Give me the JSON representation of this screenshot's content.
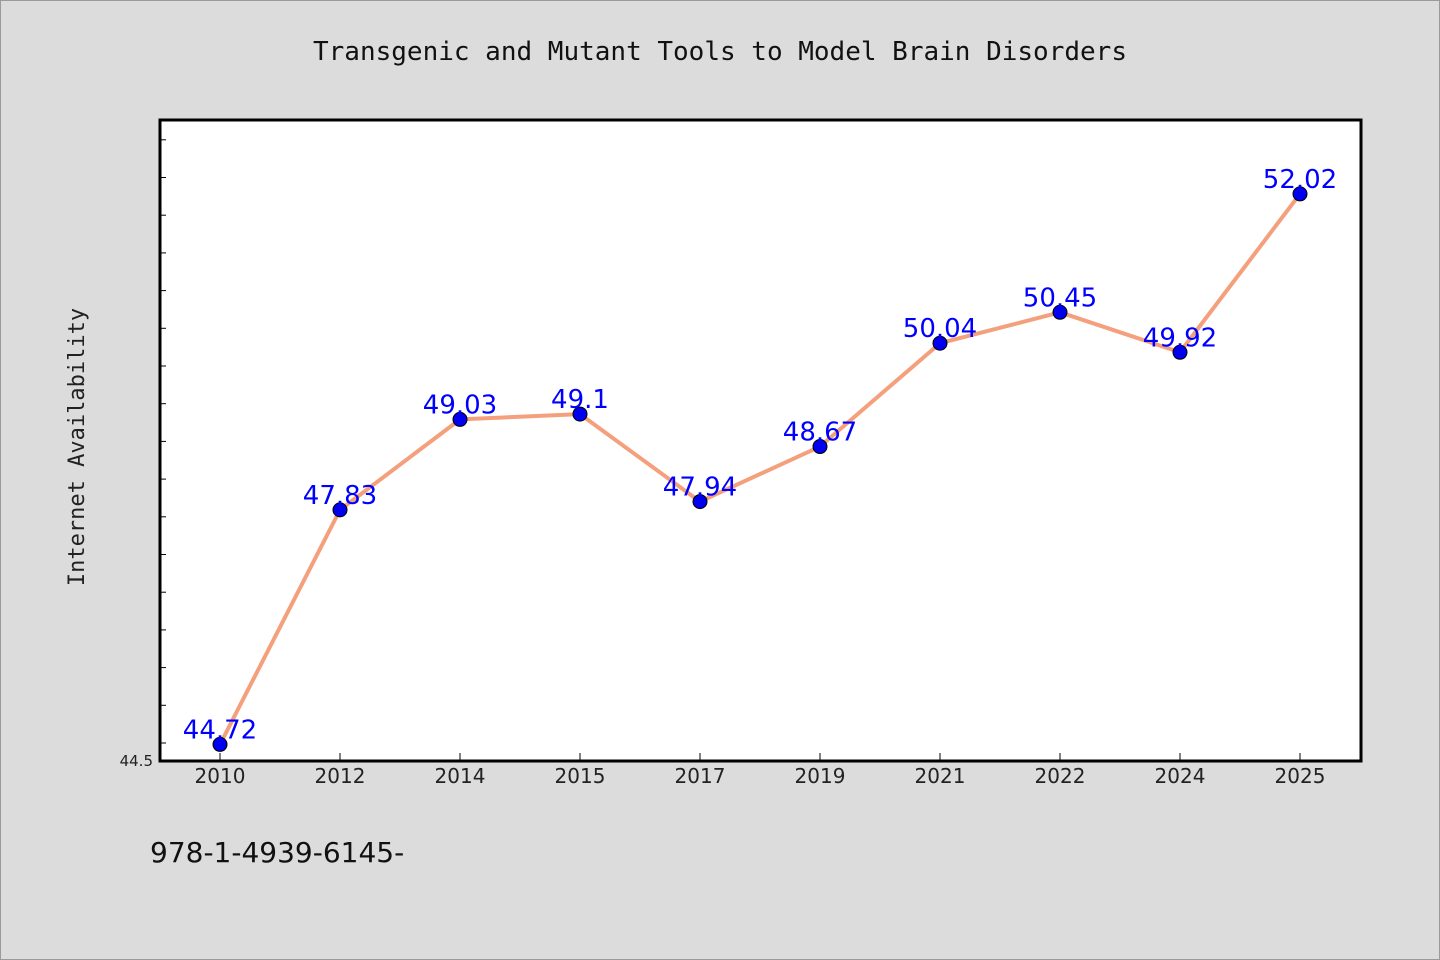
{
  "chart_data": {
    "type": "line",
    "title": "Transgenic and Mutant Tools to Model Brain Disorders",
    "xlabel": "",
    "ylabel": "Internet Availability",
    "categories": [
      "2010",
      "2012",
      "2014",
      "2015",
      "2017",
      "2019",
      "2021",
      "2022",
      "2024",
      "2025"
    ],
    "series": [
      {
        "values": [
          44.72,
          47.83,
          49.03,
          49.1,
          47.94,
          48.67,
          50.04,
          50.45,
          49.92,
          52.02
        ],
        "labels": [
          "44.72",
          "47.83",
          "49.03",
          "49.1",
          "47.94",
          "48.67",
          "50.04",
          "50.45",
          "49.92",
          "52.02"
        ]
      }
    ],
    "ylim": [
      44.5,
      53.0
    ],
    "y_tick_labels": [
      "44.5"
    ],
    "grid": false,
    "legend": "none",
    "colors": {
      "line": "#f4a07c",
      "marker": "#0000ee",
      "data_label": "#0000ff",
      "plot_background": "#ffffff",
      "page_background": "#dcdcdc"
    }
  },
  "footer": {
    "isbn": "978-1-4939-6145-"
  }
}
